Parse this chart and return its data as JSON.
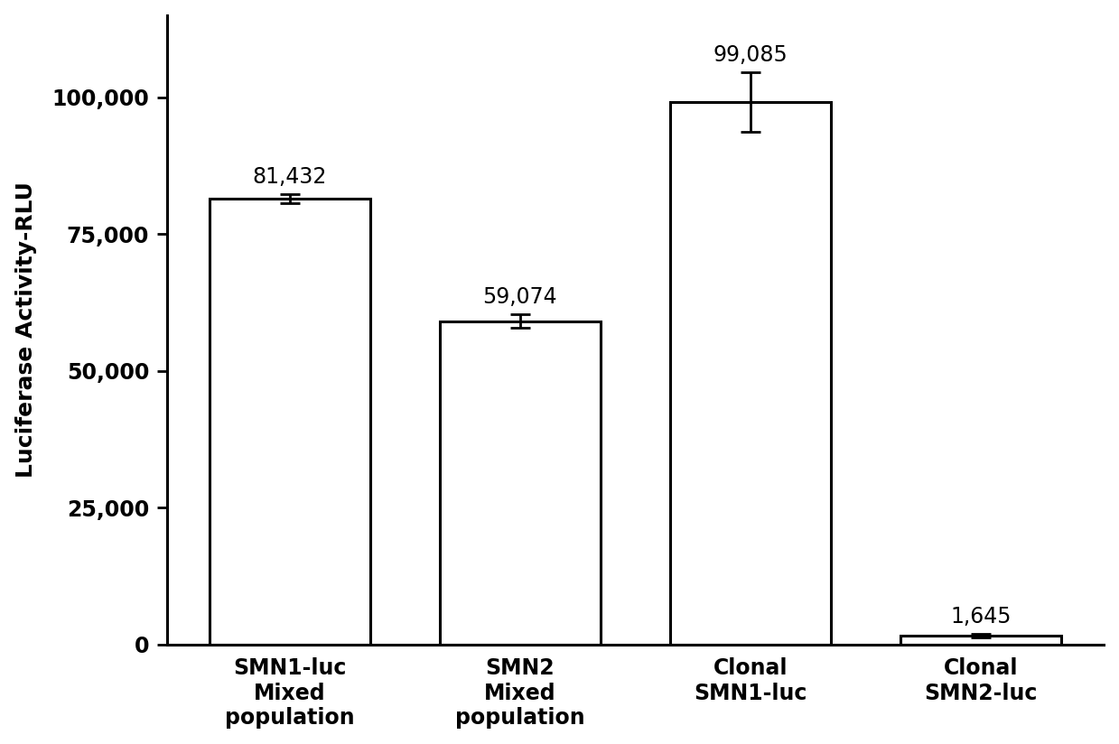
{
  "categories": [
    "SMN1-luc\nMixed\npopulation",
    "SMN2\nMixed\npopulation",
    "Clonal\nSMN1-luc",
    "Clonal\nSMN2-luc"
  ],
  "values": [
    81432,
    59074,
    99085,
    1645
  ],
  "errors": [
    800,
    1200,
    5500,
    300
  ],
  "labels": [
    "81,432",
    "59,074",
    "99,085",
    "1,645"
  ],
  "bar_color": "#ffffff",
  "bar_edgecolor": "#000000",
  "ylabel": "Luciferase Activity-RLU",
  "ylim": [
    0,
    115000
  ],
  "yticks": [
    0,
    25000,
    50000,
    75000,
    100000
  ],
  "ytick_labels": [
    "0",
    "25,000",
    "50,000",
    "75,000",
    "100,000"
  ],
  "bar_width": 0.7,
  "linewidth": 2.2,
  "label_fontsize": 17,
  "tick_fontsize": 17,
  "ylabel_fontsize": 18,
  "background_color": "#ffffff",
  "capsize": 8,
  "error_linewidth": 2.0
}
